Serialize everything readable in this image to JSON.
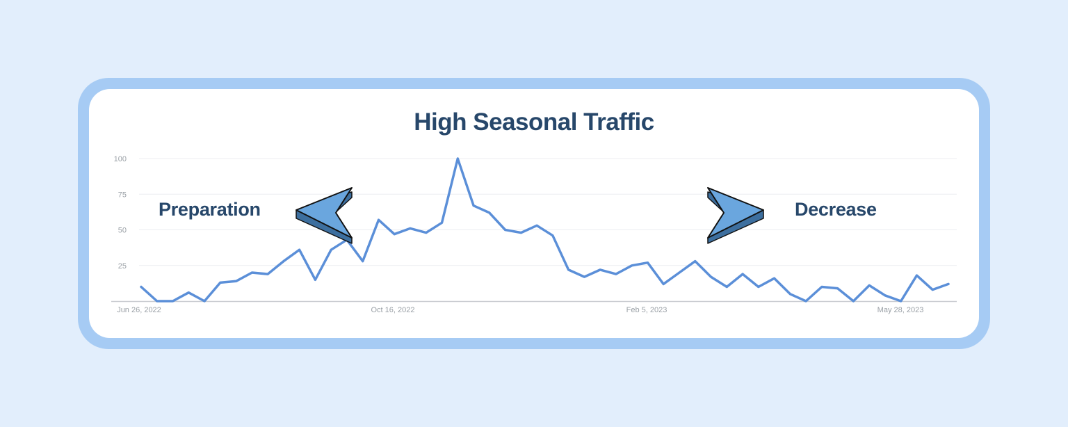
{
  "chart_data": {
    "type": "line",
    "title": "High Seasonal Traffic",
    "xlabel": "",
    "ylabel": "",
    "ylim": [
      0,
      100
    ],
    "y_ticks": [
      "100",
      "75",
      "50",
      "25"
    ],
    "x_tick_labels": [
      "Jun 26, 2022",
      "Oct 16, 2022",
      "Feb 5, 2023",
      "May 28, 2023"
    ],
    "grid": true,
    "line_color": "#5b8fd8",
    "annotations": [
      {
        "text": "Preparation",
        "arrow": "left"
      },
      {
        "text": "Decrease",
        "arrow": "right"
      }
    ],
    "series": [
      {
        "values": [
          10,
          0,
          0,
          6,
          0,
          13,
          14,
          20,
          19,
          28,
          36,
          15,
          36,
          43,
          28,
          57,
          47,
          51,
          48,
          55,
          100,
          67,
          62,
          50,
          48,
          53,
          46,
          22,
          17,
          22,
          19,
          25,
          27,
          12,
          20,
          28,
          17,
          10,
          19,
          10,
          16,
          5,
          0,
          10,
          9,
          0,
          11,
          4,
          0,
          18,
          8,
          12
        ]
      }
    ]
  },
  "colors": {
    "background": "#e2eefc",
    "frame": "#a6cbf4",
    "text": "#27476a",
    "arrow": "#6aa6de"
  }
}
